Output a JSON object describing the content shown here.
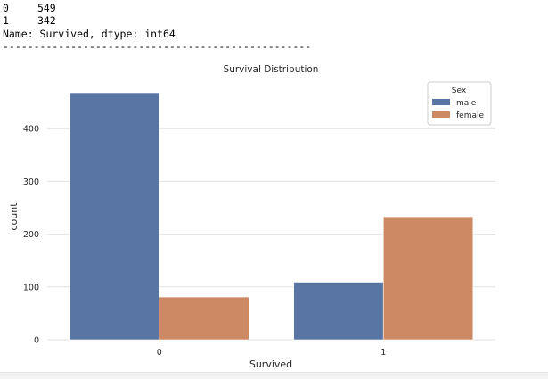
{
  "console": {
    "rows": [
      {
        "index": "0",
        "value": "549"
      },
      {
        "index": "1",
        "value": "342"
      }
    ],
    "meta": "Name: Survived, dtype: int64",
    "separator": "--------------------------------------------------"
  },
  "chart_data": {
    "type": "bar",
    "title": "Survival Distribution",
    "xlabel": "Survived",
    "ylabel": "count",
    "categories": [
      "0",
      "1"
    ],
    "series": [
      {
        "name": "male",
        "values": [
          468,
          109
        ],
        "color": "#5975a4"
      },
      {
        "name": "female",
        "values": [
          81,
          233
        ],
        "color": "#cc8963"
      }
    ],
    "ylim": [
      0,
      495
    ],
    "yticks": [
      0,
      100,
      200,
      300,
      400
    ],
    "legend": {
      "title": "Sex",
      "placement": "top-right"
    },
    "grid": "horizontal",
    "background": "#ffffff",
    "grid_color": "#e2e2e2"
  }
}
